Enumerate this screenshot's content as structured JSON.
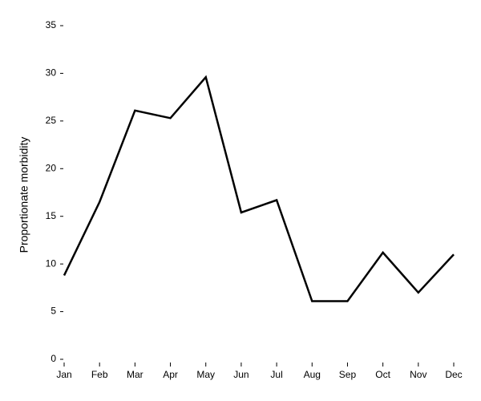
{
  "chart_data": {
    "type": "line",
    "y_label": "Proportionate morbidity",
    "categories": [
      "Jan",
      "Feb",
      "Mar",
      "Apr",
      "May",
      "Jun",
      "Jul",
      "Aug",
      "Sep",
      "Oct",
      "Nov",
      "Dec"
    ],
    "values": [
      8.8,
      16.5,
      26.1,
      25.3,
      29.6,
      15.4,
      16.7,
      6.1,
      6.1,
      11.2,
      7.0,
      11.0
    ],
    "color": "#000000",
    "ylim": [
      0,
      35
    ],
    "yticks": [
      0,
      5,
      10,
      15,
      20,
      25,
      30,
      35
    ],
    "grid": false
  }
}
